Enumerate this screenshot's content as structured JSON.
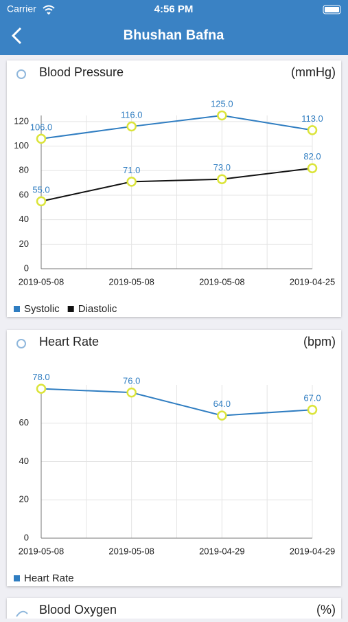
{
  "status_bar": {
    "carrier": "Carrier",
    "time": "4:56 PM"
  },
  "nav": {
    "title": "Bhushan Bafna"
  },
  "chart_data": [
    {
      "type": "line",
      "title": "Blood Pressure",
      "unit": "(mmHg)",
      "categories": [
        "2019-05-08",
        "2019-05-08",
        "2019-05-08",
        "2019-04-25"
      ],
      "series": [
        {
          "name": "Systolic",
          "color": "#2f7dc1",
          "values": [
            106,
            116,
            125,
            113
          ],
          "value_labels": [
            "106.0",
            "116.0",
            "125.0",
            "113.0"
          ]
        },
        {
          "name": "Diastolic",
          "color": "#111111",
          "values": [
            55,
            71,
            73,
            82
          ],
          "value_labels": [
            "55.0",
            "71.0",
            "73.0",
            "82.0"
          ]
        }
      ],
      "ylim": [
        0,
        125
      ],
      "yticks": [
        0,
        20,
        40,
        60,
        80,
        100,
        120
      ],
      "grid": true
    },
    {
      "type": "line",
      "title": "Heart Rate",
      "unit": "(bpm)",
      "categories": [
        "2019-05-08",
        "2019-05-08",
        "2019-04-29",
        "2019-04-29"
      ],
      "series": [
        {
          "name": "Heart Rate",
          "color": "#2f7dc1",
          "values": [
            78,
            76,
            64,
            67
          ],
          "value_labels": [
            "78.0",
            "76.0",
            "64.0",
            "67.0"
          ]
        }
      ],
      "ylim": [
        0,
        80
      ],
      "yticks": [
        0,
        20,
        40,
        60
      ],
      "grid": true
    }
  ],
  "partial_card": {
    "title": "Blood Oxygen",
    "unit": "(%)"
  }
}
